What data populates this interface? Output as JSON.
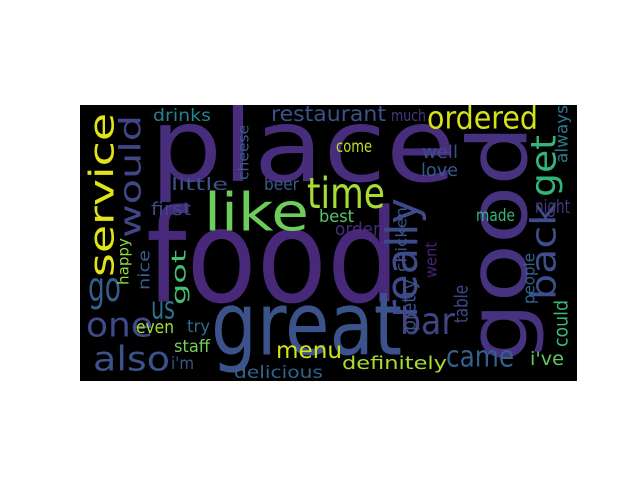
{
  "wordcloud": {
    "background": "#000000",
    "words": [
      {
        "text": "food",
        "color": "#482878"
      },
      {
        "text": "place",
        "color": "#472d7b"
      },
      {
        "text": "good",
        "color": "#46327e"
      },
      {
        "text": "great",
        "color": "#3b528b"
      },
      {
        "text": "like",
        "color": "#6ccd5a"
      },
      {
        "text": "time",
        "color": "#a8db34"
      },
      {
        "text": "really",
        "color": "#3e4a89"
      },
      {
        "text": "service",
        "color": "#e1e419"
      },
      {
        "text": "would",
        "color": "#404688"
      },
      {
        "text": "ordered",
        "color": "#d5e21a"
      },
      {
        "text": "back",
        "color": "#3d4e8a"
      },
      {
        "text": "get",
        "color": "#31b57b"
      },
      {
        "text": "one",
        "color": "#3e4a89"
      },
      {
        "text": "go",
        "color": "#355e8d"
      },
      {
        "text": "also",
        "color": "#3b528b"
      },
      {
        "text": "us",
        "color": "#2c718e"
      },
      {
        "text": "got",
        "color": "#44bf70"
      },
      {
        "text": "bar",
        "color": "#414487"
      },
      {
        "text": "menu",
        "color": "#d2e21b"
      },
      {
        "text": "came",
        "color": "#355f8d"
      },
      {
        "text": "restaurant",
        "color": "#3b528b"
      },
      {
        "text": "drinks",
        "color": "#25838e"
      },
      {
        "text": "much",
        "color": "#443983"
      },
      {
        "text": "cheese",
        "color": "#38598c"
      },
      {
        "text": "always",
        "color": "#2a788e"
      },
      {
        "text": "come",
        "color": "#bddf26"
      },
      {
        "text": "well",
        "color": "#3e4c8a"
      },
      {
        "text": "love",
        "color": "#38598c"
      },
      {
        "text": "little",
        "color": "#3b528b"
      },
      {
        "text": "beer",
        "color": "#38598c"
      },
      {
        "text": "first",
        "color": "#3f4889"
      },
      {
        "text": "best",
        "color": "#56c667"
      },
      {
        "text": "night",
        "color": "#443a83"
      },
      {
        "text": "made",
        "color": "#35b779"
      },
      {
        "text": "order",
        "color": "#472c7a"
      },
      {
        "text": "chicken",
        "color": "#3b528b"
      },
      {
        "text": "happy",
        "color": "#90d743"
      },
      {
        "text": "nice",
        "color": "#355f8d"
      },
      {
        "text": "even",
        "color": "#a5db36"
      },
      {
        "text": "try",
        "color": "#31688e"
      },
      {
        "text": "pretty",
        "color": "#3b528b"
      },
      {
        "text": "went",
        "color": "#482475"
      },
      {
        "text": "people",
        "color": "#33628d"
      },
      {
        "text": "table",
        "color": "#3e4989"
      },
      {
        "text": "could",
        "color": "#38b977"
      },
      {
        "text": "staff",
        "color": "#70cf57"
      },
      {
        "text": "i'm",
        "color": "#3b528b"
      },
      {
        "text": "definitely",
        "color": "#a8db34"
      },
      {
        "text": "i've",
        "color": "#5ec962"
      },
      {
        "text": "delicious",
        "color": "#33638d"
      }
    ]
  }
}
